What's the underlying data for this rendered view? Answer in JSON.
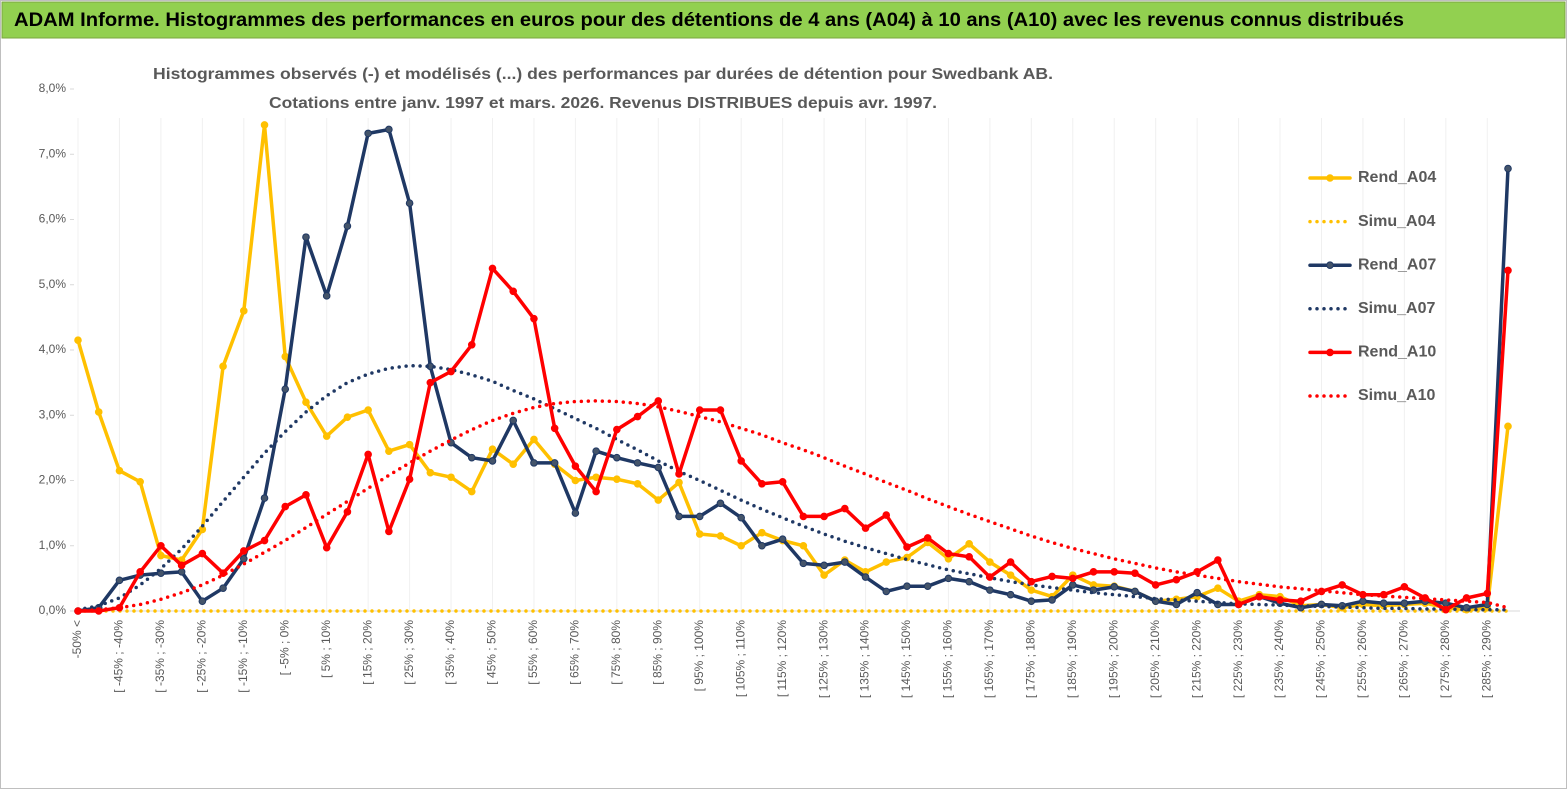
{
  "chart_data": {
    "type": "line",
    "title": "ADAM Informe. Histogrammes des performances en euros pour des détentions de 4 ans (A04) à 10 ans (A10) avec les revenus connus distribués",
    "subtitle": [
      "Histogrammes observés (-) et modélisés (...) des performances par durées de détention pour Swedbank AB.",
      "Cotations entre janv. 1997 et mars. 2026. Revenus DISTRIBUES depuis avr. 1997."
    ],
    "categories": [
      "-50% <",
      null,
      "[ -45% ; -40%",
      null,
      "[ -35% ; -30%",
      null,
      "[ -25% ; -20%",
      null,
      "[ -15% ; -10%",
      null,
      "[ -5% ; 0%",
      null,
      "[ 5% ; 10%",
      null,
      "[ 15% ; 20%",
      null,
      "[ 25% ; 30%",
      null,
      "[ 35% ; 40%",
      null,
      "[ 45% ; 50%",
      null,
      "[ 55% ; 60%",
      null,
      "[ 65% ; 70%",
      null,
      "[ 75% ; 80%",
      null,
      "[ 85% ; 90%",
      null,
      "[ 95% ; 100%",
      null,
      "[ 105% ; 110%",
      null,
      "[ 115% ; 120%",
      null,
      "[ 125% ; 130%",
      null,
      "[ 135% ; 140%",
      null,
      "[ 145% ; 150%",
      null,
      "[ 155% ; 160%",
      null,
      "[ 165% ; 170%",
      null,
      "[ 175% ; 180%",
      null,
      "[ 185% ; 190%",
      null,
      "[ 195% ; 200%",
      null,
      "[ 205% ; 210%",
      null,
      "[ 215% ; 220%",
      null,
      "[ 225% ; 230%",
      null,
      "[ 235% ; 240%",
      null,
      "[ 245% ; 250%",
      null,
      "[ 255% ; 260%",
      null,
      "[ 265% ; 270%",
      null,
      "[ 275% ; 280%",
      null,
      "[ 285% ; 290%",
      null
    ],
    "series": [
      {
        "name": "Rend_A04",
        "color": "#FFC000",
        "style": "solid",
        "marker": true,
        "values": [
          4.15,
          3.05,
          2.15,
          1.98,
          0.85,
          0.78,
          1.25,
          3.75,
          4.6,
          7.45,
          3.9,
          3.2,
          2.68,
          2.97,
          3.08,
          2.45,
          2.55,
          2.12,
          2.05,
          1.83,
          2.48,
          2.25,
          2.63,
          2.25,
          2.0,
          2.05,
          2.02,
          1.95,
          1.7,
          1.97,
          1.18,
          1.15,
          1.0,
          1.2,
          1.08,
          1.0,
          0.55,
          0.78,
          0.6,
          0.75,
          0.82,
          1.05,
          0.8,
          1.03,
          0.75,
          0.55,
          0.32,
          0.22,
          0.55,
          0.4,
          0.38,
          0.3,
          0.15,
          0.18,
          0.22,
          0.35,
          0.15,
          0.25,
          0.22,
          0.08,
          0.1,
          0.05,
          0.1,
          0.08,
          0.1,
          0.12,
          0.05,
          0.02,
          0.05,
          2.83
        ]
      },
      {
        "name": "Simu_A04",
        "color": "#FFC000",
        "style": "dotted",
        "marker": false,
        "values": [
          0,
          0,
          0,
          0,
          0,
          0,
          0,
          0,
          0,
          0,
          0,
          0,
          0,
          0,
          0,
          0,
          0,
          0,
          0,
          0,
          0,
          0,
          0,
          0,
          0,
          0,
          0,
          0,
          0,
          0,
          0,
          0,
          0,
          0,
          0,
          0,
          0,
          0,
          0,
          0,
          0,
          0,
          0,
          0,
          0,
          0,
          0,
          0,
          0,
          0,
          0,
          0,
          0,
          0,
          0,
          0,
          0,
          0,
          0,
          0,
          0,
          0,
          0,
          0,
          0,
          0,
          0,
          0,
          0,
          0
        ]
      },
      {
        "name": "Rend_A07",
        "color": "#1F3864",
        "style": "solid",
        "marker": true,
        "values": [
          0,
          0.05,
          0.47,
          0.55,
          0.58,
          0.6,
          0.15,
          0.35,
          0.8,
          1.73,
          3.4,
          5.73,
          4.83,
          5.9,
          7.32,
          7.38,
          6.25,
          3.75,
          2.58,
          2.35,
          2.3,
          2.92,
          2.27,
          2.27,
          1.5,
          2.45,
          2.35,
          2.27,
          2.2,
          1.45,
          1.45,
          1.65,
          1.43,
          1.0,
          1.1,
          0.73,
          0.7,
          0.75,
          0.52,
          0.3,
          0.38,
          0.38,
          0.5,
          0.45,
          0.32,
          0.25,
          0.15,
          0.17,
          0.4,
          0.32,
          0.37,
          0.3,
          0.15,
          0.1,
          0.28,
          0.1,
          0.1,
          0.22,
          0.12,
          0.05,
          0.1,
          0.08,
          0.15,
          0.12,
          0.12,
          0.15,
          0.12,
          0.05,
          0.1,
          6.78
        ]
      },
      {
        "name": "Simu_A07",
        "color": "#1F3864",
        "style": "dotted",
        "marker": false,
        "values": [
          0.02,
          0.08,
          0.2,
          0.4,
          0.65,
          0.95,
          1.3,
          1.68,
          2.05,
          2.42,
          2.75,
          3.05,
          3.3,
          3.5,
          3.63,
          3.72,
          3.76,
          3.75,
          3.7,
          3.62,
          3.52,
          3.38,
          3.25,
          3.1,
          2.95,
          2.8,
          2.63,
          2.47,
          2.3,
          2.14,
          2.0,
          1.85,
          1.7,
          1.56,
          1.43,
          1.3,
          1.18,
          1.07,
          0.97,
          0.88,
          0.79,
          0.71,
          0.63,
          0.57,
          0.51,
          0.45,
          0.4,
          0.36,
          0.32,
          0.28,
          0.25,
          0.22,
          0.19,
          0.17,
          0.15,
          0.13,
          0.11,
          0.1,
          0.09,
          0.08,
          0.07,
          0.06,
          0.05,
          0.04,
          0.04,
          0.03,
          0.03,
          0.02,
          0.02,
          0.02
        ]
      },
      {
        "name": "Rend_A10",
        "color": "#FF0000",
        "style": "solid",
        "marker": true,
        "values": [
          0,
          0,
          0.05,
          0.6,
          1.0,
          0.7,
          0.88,
          0.58,
          0.92,
          1.08,
          1.6,
          1.78,
          0.97,
          1.52,
          2.4,
          1.22,
          2.02,
          3.5,
          3.67,
          4.08,
          5.25,
          4.9,
          4.48,
          2.8,
          2.22,
          1.83,
          2.78,
          2.98,
          3.22,
          2.1,
          3.08,
          3.08,
          2.3,
          1.95,
          1.98,
          1.45,
          1.45,
          1.57,
          1.27,
          1.47,
          0.98,
          1.12,
          0.88,
          0.83,
          0.52,
          0.75,
          0.45,
          0.53,
          0.5,
          0.6,
          0.6,
          0.58,
          0.4,
          0.48,
          0.6,
          0.78,
          0.1,
          0.22,
          0.17,
          0.15,
          0.3,
          0.4,
          0.25,
          0.25,
          0.37,
          0.2,
          0.02,
          0.2,
          0.27,
          5.22
        ]
      },
      {
        "name": "Simu_A10",
        "color": "#FF0000",
        "style": "dotted",
        "marker": false,
        "values": [
          0.0,
          0.02,
          0.05,
          0.1,
          0.18,
          0.28,
          0.4,
          0.55,
          0.72,
          0.9,
          1.08,
          1.28,
          1.48,
          1.68,
          1.88,
          2.08,
          2.27,
          2.45,
          2.62,
          2.78,
          2.92,
          3.03,
          3.12,
          3.18,
          3.21,
          3.22,
          3.21,
          3.18,
          3.13,
          3.06,
          2.98,
          2.9,
          2.8,
          2.7,
          2.58,
          2.47,
          2.35,
          2.22,
          2.1,
          1.97,
          1.85,
          1.72,
          1.6,
          1.48,
          1.37,
          1.26,
          1.15,
          1.05,
          0.96,
          0.88,
          0.8,
          0.73,
          0.66,
          0.6,
          0.55,
          0.5,
          0.45,
          0.41,
          0.37,
          0.34,
          0.31,
          0.28,
          0.25,
          0.23,
          0.21,
          0.19,
          0.17,
          0.15,
          0.13,
          0.05
        ]
      }
    ],
    "ylim": [
      0,
      8
    ],
    "yticks": [
      {
        "value": 0,
        "label": "0,0%"
      },
      {
        "value": 1,
        "label": "1,0%"
      },
      {
        "value": 2,
        "label": "2,0%"
      },
      {
        "value": 3,
        "label": "3,0%"
      },
      {
        "value": 4,
        "label": "4,0%"
      },
      {
        "value": 5,
        "label": "5,0%"
      },
      {
        "value": 6,
        "label": "6,0%"
      },
      {
        "value": 7,
        "label": "7,0%"
      },
      {
        "value": 8,
        "label": "8,0%"
      }
    ],
    "legend": "right"
  }
}
